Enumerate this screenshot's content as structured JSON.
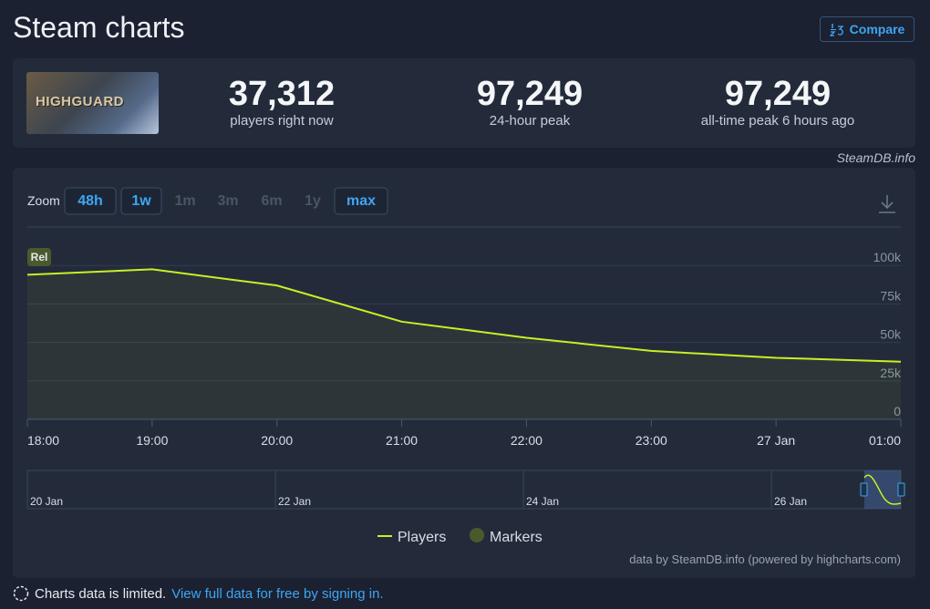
{
  "header": {
    "title": "Steam charts",
    "compare": "Compare"
  },
  "stats": {
    "game_image_text": "HIGHGUARD",
    "items": [
      {
        "value": "37,312",
        "label": "players right now"
      },
      {
        "value": "97,249",
        "label": "24-hour peak"
      },
      {
        "value": "97,249",
        "label": "all-time peak 6 hours ago"
      }
    ],
    "source": "SteamDB.info"
  },
  "zoom": {
    "label": "Zoom",
    "options": [
      {
        "label": "48h",
        "enabled": true
      },
      {
        "label": "1w",
        "enabled": true
      },
      {
        "label": "1m",
        "enabled": false
      },
      {
        "label": "3m",
        "enabled": false
      },
      {
        "label": "6m",
        "enabled": false
      },
      {
        "label": "1y",
        "enabled": false
      },
      {
        "label": "max",
        "enabled": true
      }
    ]
  },
  "chart_data": {
    "type": "line",
    "categories": [
      "18:00",
      "19:00",
      "20:00",
      "21:00",
      "22:00",
      "23:00",
      "27 Jan",
      "01:00"
    ],
    "series": [
      {
        "name": "Players",
        "color": "#c8f024",
        "values": [
          94000,
          97500,
          87000,
          63500,
          53000,
          44500,
          40000,
          37500
        ]
      }
    ],
    "markers": {
      "name": "Markers",
      "color": "#4b5a2c",
      "labels": [
        "Rel"
      ]
    },
    "ylim": [
      0,
      125000
    ],
    "yticks": [
      0,
      {
        "value": 25000,
        "label": "25k"
      },
      {
        "value": 50000,
        "label": "50k"
      },
      {
        "value": 75000,
        "label": "75k"
      },
      {
        "value": 100000,
        "label": "100k"
      }
    ],
    "grid": true,
    "navigator_labels": [
      "20 Jan",
      "22 Jan",
      "24 Jan",
      "26 Jan"
    ],
    "credits": "data by SteamDB.info (powered by highcharts.com)"
  },
  "footer": {
    "notice": "Charts data is limited.",
    "link": "View full data for free by signing in."
  }
}
